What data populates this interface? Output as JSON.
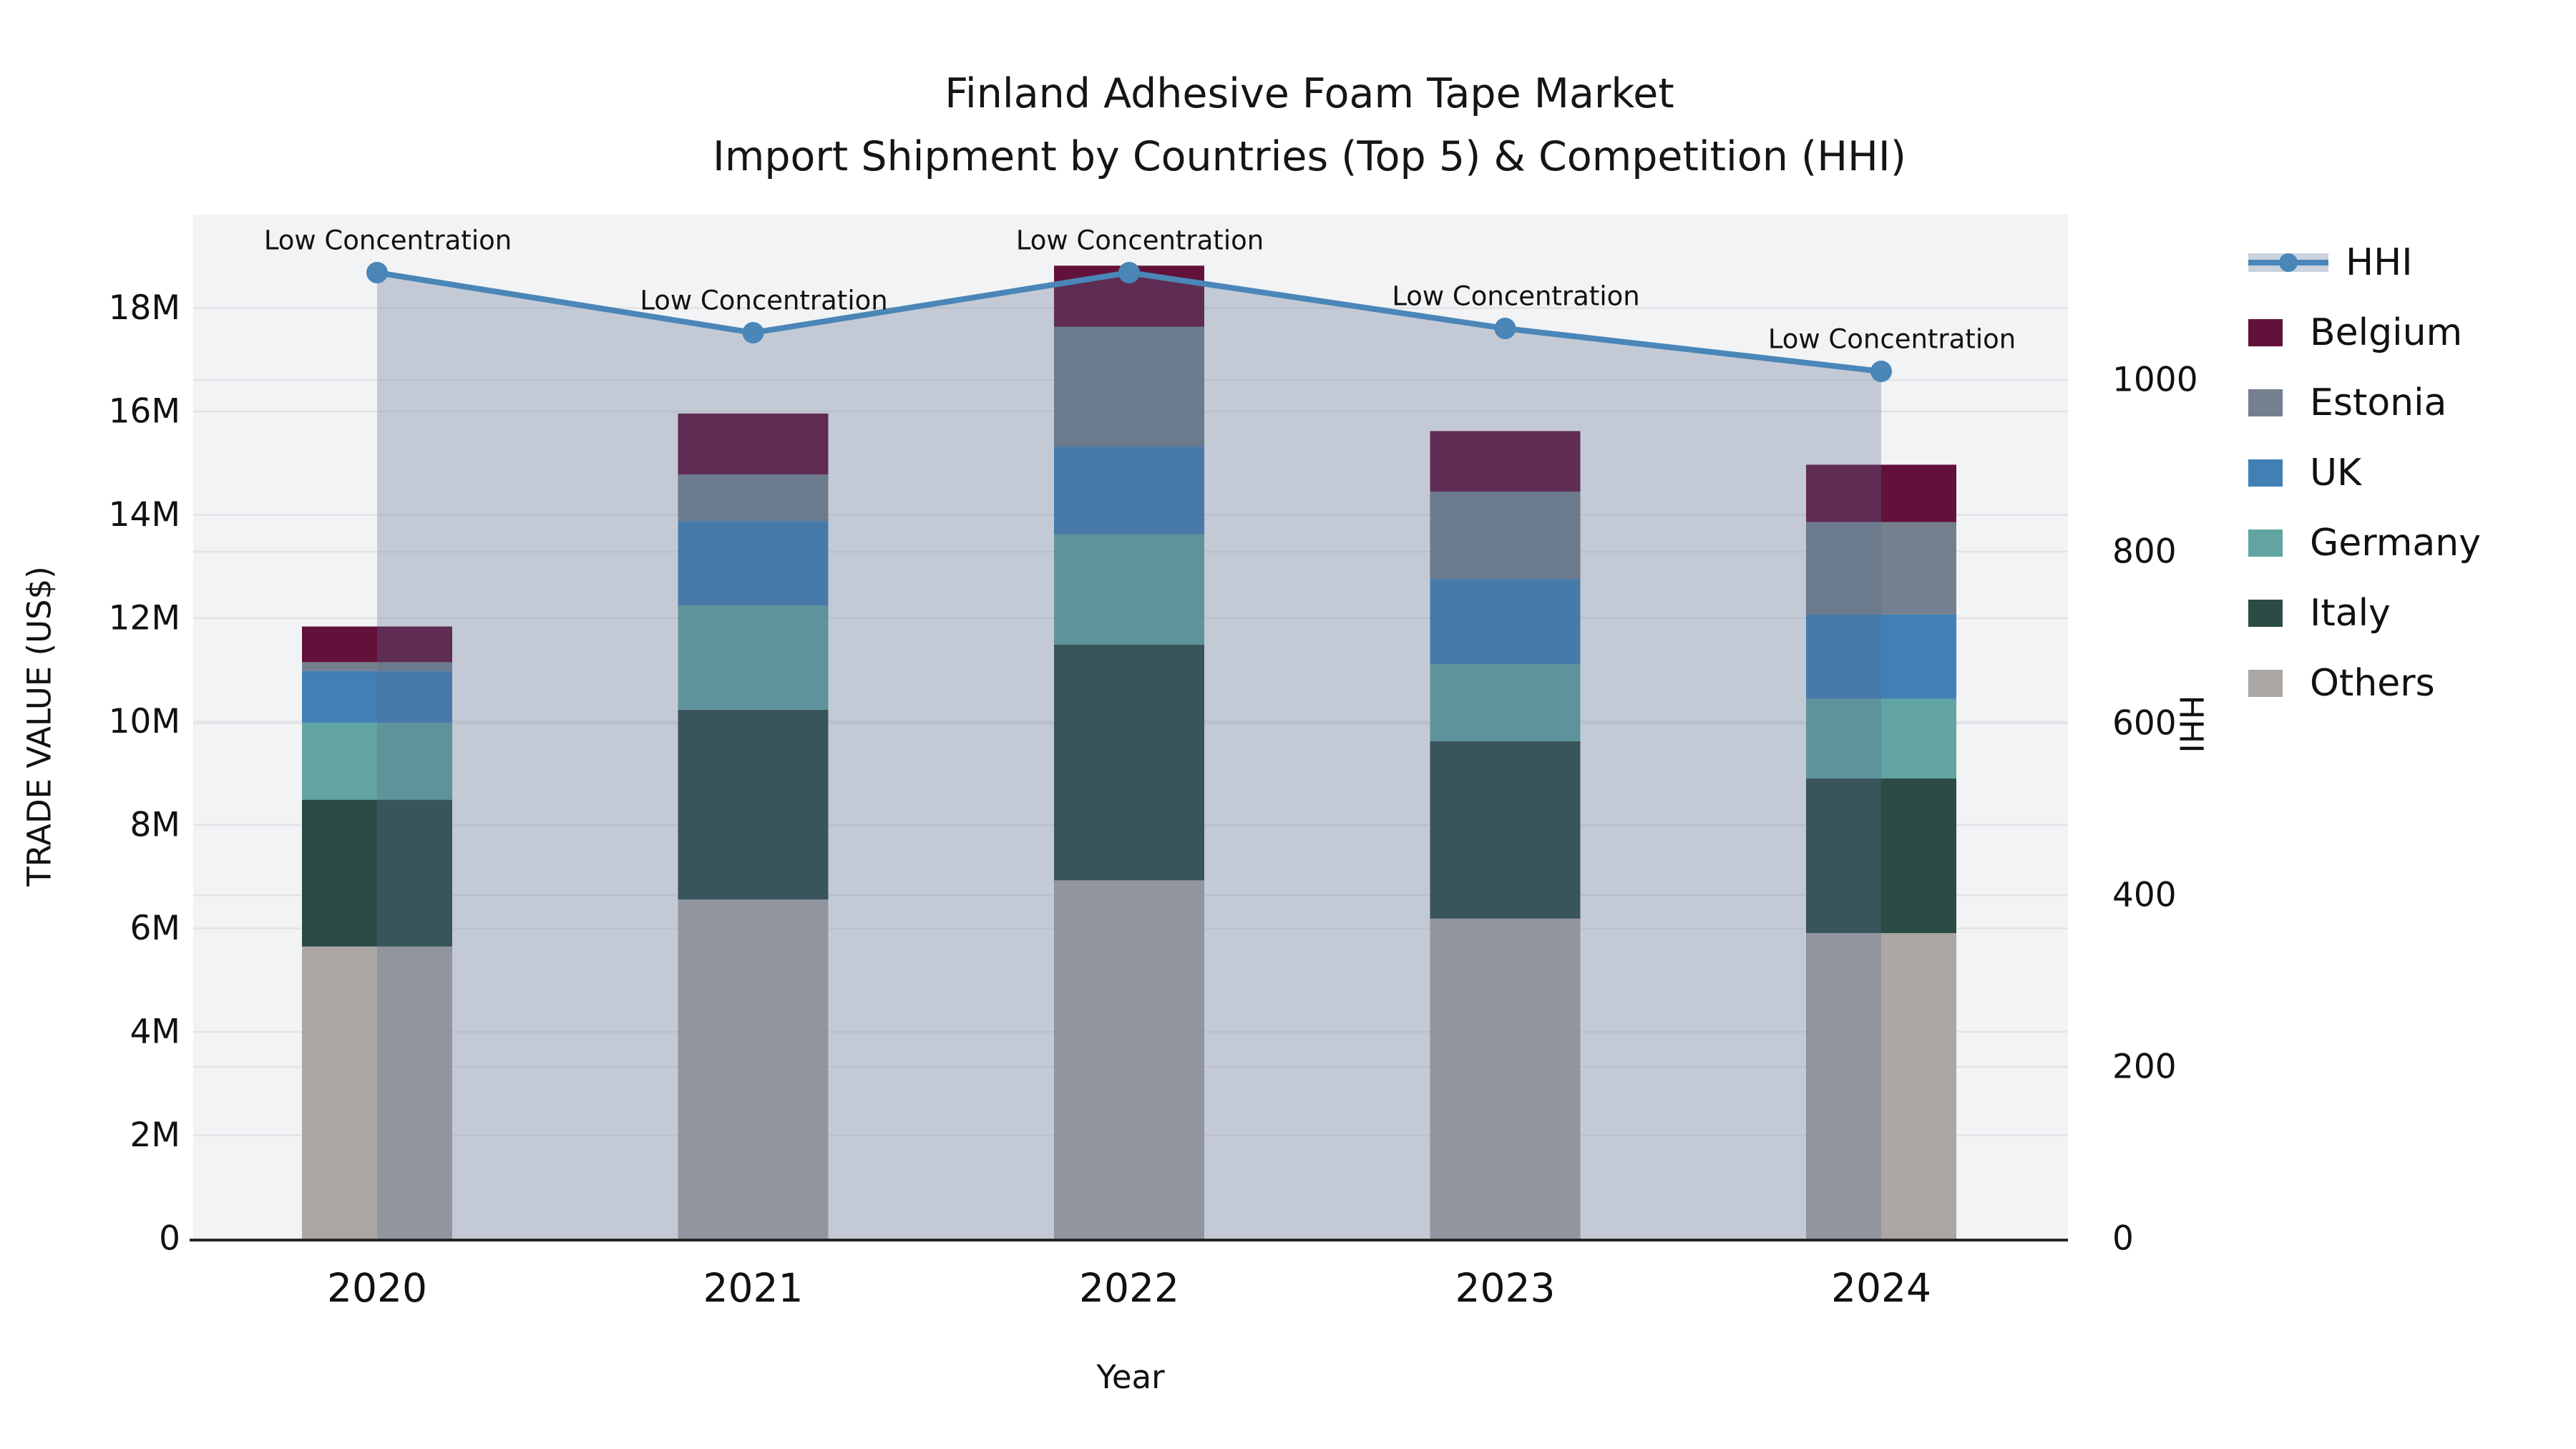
{
  "title": {
    "line1": "Finland Adhesive Foam Tape Market",
    "line2": "Import Shipment by Countries (Top 5) & Competition (HHI)"
  },
  "axes": {
    "x_label": "Year",
    "y_left_label": "TRADE VALUE (US$)",
    "y_right_label": "HHI",
    "y_left_ticks": [
      "0",
      "2M",
      "4M",
      "6M",
      "8M",
      "10M",
      "12M",
      "14M",
      "16M",
      "18M"
    ],
    "y_left_tick_values_m": [
      0,
      2,
      4,
      6,
      8,
      10,
      12,
      14,
      16,
      18
    ],
    "y_right_ticks": [
      "0",
      "200",
      "400",
      "600",
      "800",
      "1000"
    ],
    "y_right_tick_values": [
      0,
      200,
      400,
      600,
      800,
      1000
    ]
  },
  "annotation_text": "Low Concentration",
  "legend": [
    {
      "label": "HHI",
      "type": "line",
      "color": "#4a86b8"
    },
    {
      "label": "Belgium",
      "type": "box",
      "color": "#62123a"
    },
    {
      "label": "Estonia",
      "type": "box",
      "color": "#75808f"
    },
    {
      "label": "UK",
      "type": "box",
      "color": "#4080b5"
    },
    {
      "label": "Germany",
      "type": "box",
      "color": "#61a4a1"
    },
    {
      "label": "Italy",
      "type": "box",
      "color": "#2c4b45"
    },
    {
      "label": "Others",
      "type": "box",
      "color": "#aaa7a4"
    }
  ],
  "chart_data": {
    "type": "bar+line",
    "title": "Finland Adhesive Foam Tape Market — Import Shipment by Countries (Top 5) & Competition (HHI)",
    "categories": [
      "2020",
      "2021",
      "2022",
      "2023",
      "2024"
    ],
    "bar_unit": "million US$",
    "stack_order_bottom_to_top": [
      "Others",
      "Italy",
      "Germany",
      "UK",
      "Estonia",
      "Belgium"
    ],
    "series": [
      {
        "name": "Others",
        "color": "#aaa7a4",
        "values": [
          5.65,
          6.56,
          6.93,
          6.19,
          5.91
        ]
      },
      {
        "name": "Italy",
        "color": "#2c4b45",
        "values": [
          2.84,
          3.67,
          4.56,
          3.43,
          2.99
        ]
      },
      {
        "name": "Germany",
        "color": "#61a4a1",
        "values": [
          1.49,
          2.02,
          2.13,
          1.49,
          1.54
        ]
      },
      {
        "name": "UK",
        "color": "#4080b5",
        "values": [
          1.0,
          1.63,
          1.7,
          1.65,
          1.63
        ]
      },
      {
        "name": "Estonia",
        "color": "#75808f",
        "values": [
          0.17,
          0.9,
          2.32,
          1.69,
          1.79
        ]
      },
      {
        "name": "Belgium",
        "color": "#62123a",
        "values": [
          0.69,
          1.18,
          1.18,
          1.17,
          1.11
        ]
      }
    ],
    "bar_totals": [
      11.84,
      15.96,
      18.82,
      15.62,
      14.97
    ],
    "line_series": {
      "name": "HHI",
      "axis": "right",
      "color": "#4a86b8",
      "area_fill": "rgba(88,109,141,0.30)",
      "values": [
        1125,
        1055,
        1125,
        1060,
        1010
      ]
    },
    "annotations": [
      "Low Concentration",
      "Low Concentration",
      "Low Concentration",
      "Low Concentration",
      "Low Concentration"
    ],
    "xlabel": "Year",
    "ylabel_left": "TRADE VALUE (US$)",
    "ylabel_right": "HHI",
    "ylim_left_m": [
      0,
      19.8
    ],
    "ylim_right": [
      0,
      1192
    ],
    "grid": true,
    "legend_position": "right",
    "plot_bg": "#f2f3f4"
  },
  "colors": {
    "grid": "#e2e3e6",
    "axis_spine": "#262626",
    "text": "#111111",
    "legend_area_band": "#c9d3de"
  }
}
